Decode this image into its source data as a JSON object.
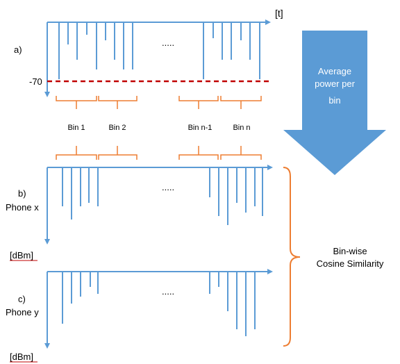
{
  "labels": {
    "time_unit": "[t]",
    "panel_a": "a)",
    "threshold": "-70",
    "panel_b": "b)",
    "phone_x": "Phone x",
    "dbm_b": "[dBm]",
    "panel_c": "c)",
    "phone_y": "Phone y",
    "dbm_c": "[dBm]",
    "ellipsis_a": ".....",
    "ellipsis_b": ".....",
    "ellipsis_c": "....."
  },
  "bins": [
    "Bin 1",
    "Bin 2",
    "Bin n-1",
    "Bin n"
  ],
  "arrow": {
    "line1": "Average",
    "line2": "power per",
    "line3": "bin"
  },
  "similarity": {
    "line1": "Bin-wise",
    "line2": "Cosine Similarity"
  },
  "colors": {
    "signal": "#5b9bd5",
    "bracket": "#ed7d31",
    "threshold": "#c00000",
    "arrow_fill": "#5b9bd5"
  }
}
